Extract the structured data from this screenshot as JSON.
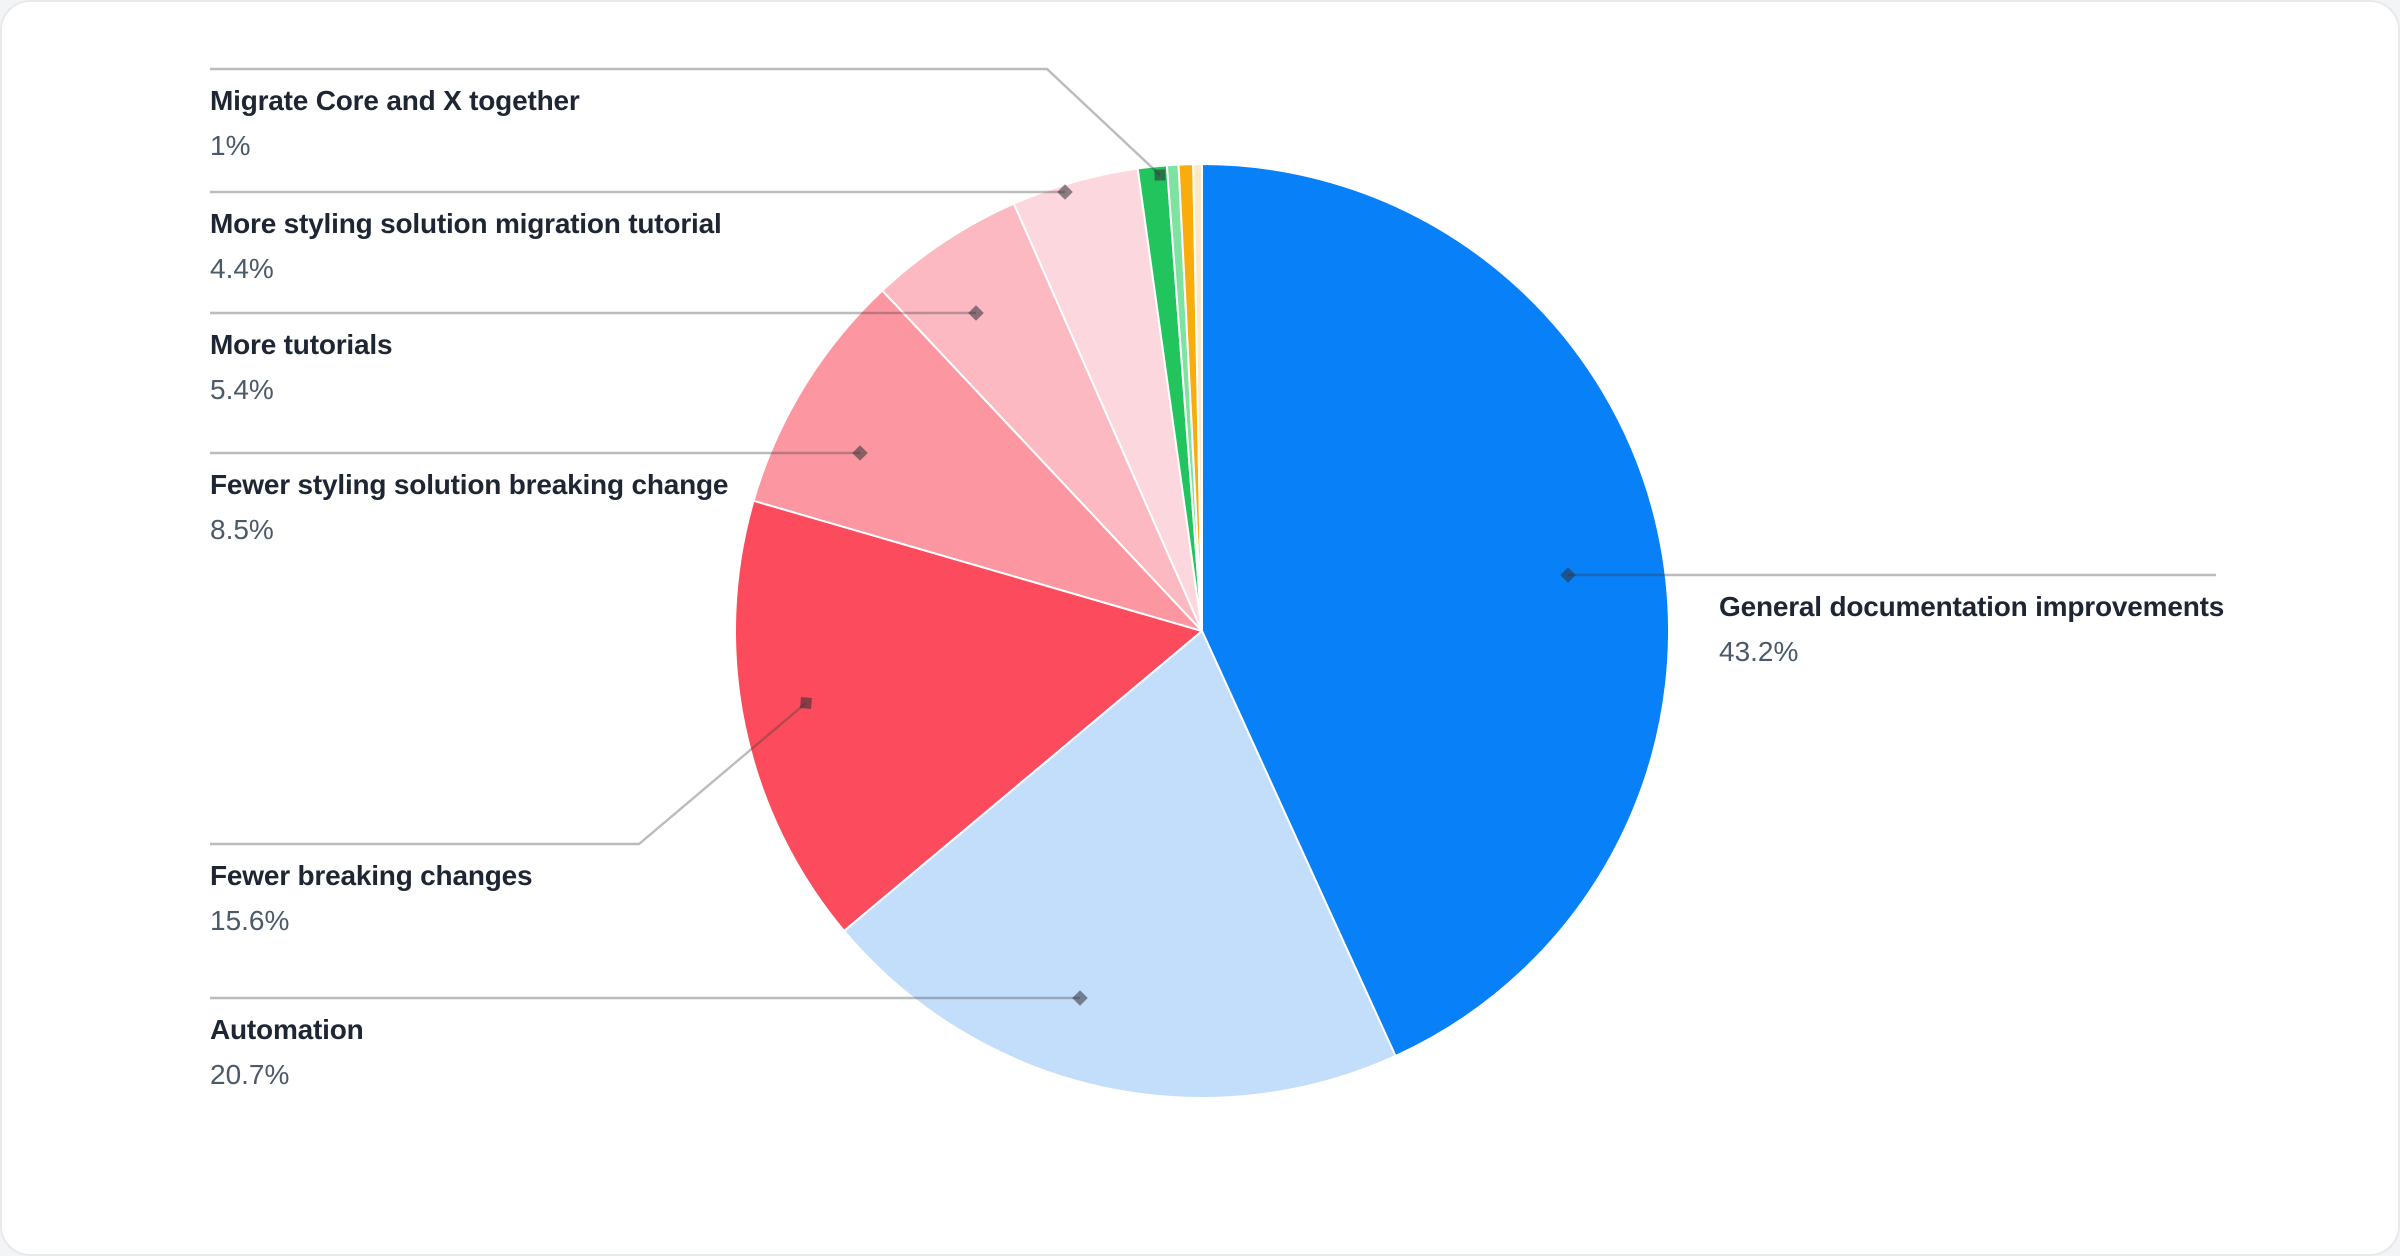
{
  "chart_data": {
    "type": "pie",
    "title": "",
    "unit": "%",
    "start_angle_deg_from_top": 0,
    "direction": "clockwise",
    "legend_position": "callout-labels",
    "label_text_color": "#1E2633",
    "percent_text_color": "#4B5A6B",
    "leader_line_color": "#ADADAD",
    "slices": [
      {
        "id": "general",
        "label": "General documentation improvements",
        "percent": 43.2,
        "display": "43.2%",
        "color": "#0780F8",
        "labeled": true
      },
      {
        "id": "automation",
        "label": "Automation",
        "percent": 20.7,
        "display": "20.7%",
        "color": "#C3DEFB",
        "labeled": true
      },
      {
        "id": "fewer-breaking",
        "label": "Fewer breaking changes",
        "percent": 15.6,
        "display": "15.6%",
        "color": "#FB4B5C",
        "labeled": true
      },
      {
        "id": "fewer-styling-breaking",
        "label": "Fewer styling solution breaking change",
        "percent": 8.5,
        "display": "8.5%",
        "color": "#FC97A1",
        "labeled": true
      },
      {
        "id": "more-tutorials",
        "label": "More tutorials",
        "percent": 5.4,
        "display": "5.4%",
        "color": "#FCB9C2",
        "labeled": true
      },
      {
        "id": "more-styling-tutorial",
        "label": "More styling solution migration tutorial",
        "percent": 4.4,
        "display": "4.4%",
        "color": "#FCD8DE",
        "labeled": true
      },
      {
        "id": "migrate-core-x",
        "label": "Migrate Core and X together",
        "percent": 1,
        "display": "1%",
        "color": "#22C45E",
        "labeled": true
      },
      {
        "id": "unlabeled-green",
        "label": "",
        "percent": 0.4,
        "display": "",
        "color": "#7EE2A1",
        "labeled": false
      },
      {
        "id": "unlabeled-orange",
        "label": "",
        "percent": 0.5,
        "display": "",
        "color": "#F9AD0D",
        "labeled": false
      },
      {
        "id": "unlabeled-cream",
        "label": "",
        "percent": 0.3,
        "display": "",
        "color": "#FBE8C5",
        "labeled": false
      }
    ]
  }
}
